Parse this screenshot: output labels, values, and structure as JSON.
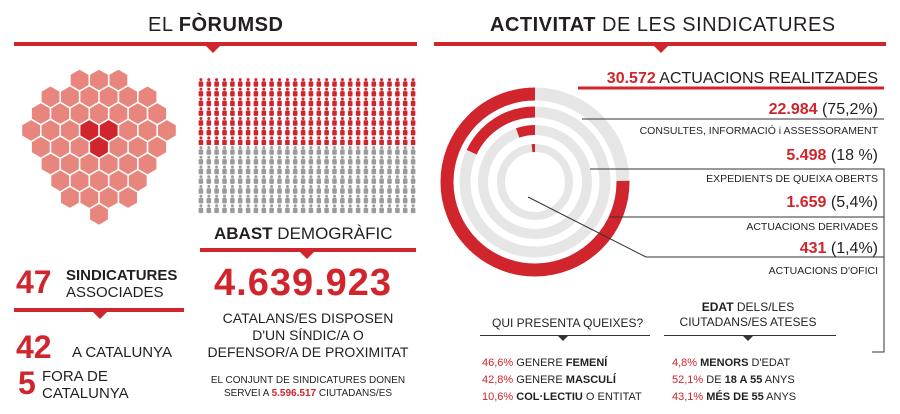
{
  "left": {
    "title_light": "EL ",
    "title_bold": "FÒRUMSD",
    "sindicatures_num": "47",
    "sindicatures_bold": "SINDICATURES",
    "sindicatures_rest": "ASSOCIADES",
    "catalunya_num": "42",
    "catalunya_label": "A CATALUNYA",
    "fora_num": "5",
    "fora_label_1": "FORA DE",
    "fora_label_2": "CATALUNYA",
    "hex_color": "#e8867e",
    "hex_highlight_color": "#d0252d"
  },
  "abast": {
    "title_bold": "ABAST",
    "title_light": " DEMOGRÀFIC",
    "population": "4.639.923",
    "desc_1": "CATALANS/ES DISPOSEN",
    "desc_2": "D'UN SÍNDIC/A O",
    "desc_3": "DEFENSOR/A DE PROXIMITAT",
    "served_1": "EL CONJUNT DE SINDICATURES DONEN",
    "served_2a": "SERVEI A ",
    "served_num": "5.596.517",
    "served_2b": " CIUTADANS/ES",
    "people_red": "#d0252d",
    "people_gray": "#9b9b9b"
  },
  "activitat": {
    "title_bold": "ACTIVITAT",
    "title_light": " DE LES SINDICATURES",
    "total_num": "30.572",
    "total_label": " ACTUACIONS REALITZADES",
    "items": [
      {
        "num": "22.984",
        "pct": " (75,2%)",
        "label": "CONSULTES, INFORMACIÓ i ASSESSORAMENT",
        "fraction": 0.752
      },
      {
        "num": "5.498",
        "pct": " (18 %)",
        "label": "EXPEDIENTS DE QUEIXA OBERTS",
        "fraction": 0.18
      },
      {
        "num": "1.659",
        "pct": " (5,4%)",
        "label": "ACTUACIONS DERIVADES",
        "fraction": 0.054
      },
      {
        "num": "431",
        "pct": " (1,4%)",
        "label": "ACTUACIONS D'OFICI",
        "fraction": 0.014
      }
    ],
    "ring_red": "#d0252d",
    "ring_gray": "#e6e6e6"
  },
  "queixes": {
    "title": "QUI PRESENTA QUEIXES?",
    "rows": [
      {
        "pct": "46,6%",
        "pre": " GENERE ",
        "bold": "FEMENÍ",
        "post": ""
      },
      {
        "pct": "42,8%",
        "pre": " GENERE ",
        "bold": "MASCULÍ",
        "post": ""
      },
      {
        "pct": "10,6%",
        "pre": " ",
        "bold": "COL·LECTIU",
        "post": " O ENTITAT"
      }
    ]
  },
  "edat": {
    "title_bold": "EDAT",
    "title_light_1": " DELS/LES",
    "title_light_2": "CIUTADANS/ES ATESES",
    "rows": [
      {
        "pct": "4,8%",
        "pre": " ",
        "bold": "MENORS",
        "post": " D'EDAT"
      },
      {
        "pct": "52,1%",
        "pre": " DE ",
        "bold": "18 A 55",
        "post": " ANYS"
      },
      {
        "pct": "43,1%",
        "pre": " ",
        "bold": "MÉS DE 55",
        "post": " ANYS"
      }
    ]
  }
}
